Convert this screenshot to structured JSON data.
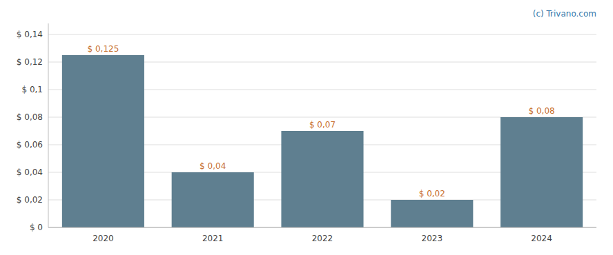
{
  "chart_data": {
    "type": "bar",
    "categories": [
      "2020",
      "2021",
      "2022",
      "2023",
      "2024"
    ],
    "values": [
      0.125,
      0.04,
      0.07,
      0.02,
      0.08
    ],
    "value_labels": [
      "$ 0,125",
      "$ 0,04",
      "$ 0,07",
      "$ 0,02",
      "$ 0,08"
    ],
    "color": "#5f7f90",
    "ylim": [
      0,
      0.148
    ],
    "yticks": [
      {
        "value": 0,
        "label": "$ 0"
      },
      {
        "value": 0.02,
        "label": "$ 0,02"
      },
      {
        "value": 0.04,
        "label": "$ 0,04"
      },
      {
        "value": 0.06,
        "label": "$ 0,06"
      },
      {
        "value": 0.08,
        "label": "$ 0,08"
      },
      {
        "value": 0.1,
        "label": "$ 0,1"
      },
      {
        "value": 0.12,
        "label": "$ 0,12"
      },
      {
        "value": 0.14,
        "label": "$ 0,14"
      }
    ],
    "grid": true,
    "data_labels": true,
    "annotations": [
      "(c) Trivano.com"
    ]
  }
}
